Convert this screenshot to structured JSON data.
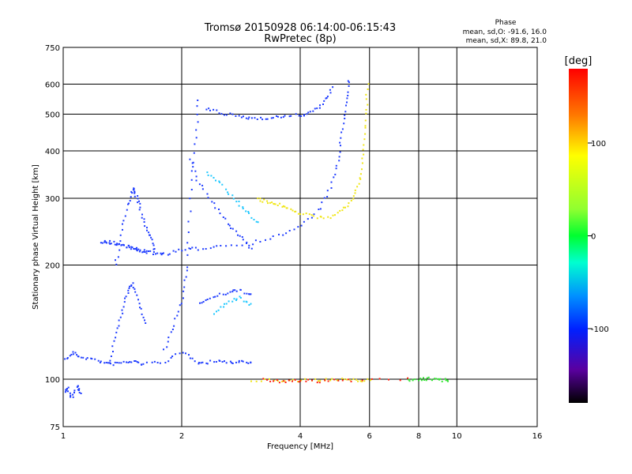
{
  "chart_data": {
    "type": "scatter",
    "title": "Tromsø 20150928 06:14:00-06:15:43",
    "subtitle": "RwPretec (8p)",
    "xlabel": "Frequency [MHz]",
    "ylabel": "Stationary phase Virtual Height [km]",
    "x_scale": "log",
    "y_scale": "log",
    "xlim": [
      1,
      16
    ],
    "ylim": [
      75,
      750
    ],
    "x_ticks": [
      "1",
      "2",
      "4",
      "6",
      "8",
      "10",
      "16"
    ],
    "x_tick_values": [
      1,
      2,
      4,
      6,
      8,
      10,
      16
    ],
    "y_ticks": [
      "75",
      "100",
      "200",
      "300",
      "400",
      "500",
      "600",
      "750"
    ],
    "y_tick_values": [
      75,
      100,
      200,
      300,
      400,
      500,
      600,
      750
    ],
    "grid": true,
    "phase_stats": {
      "heading": "Phase",
      "line1": "mean, sd,O: -91.6, 16.0",
      "line2": "mean, sd,X:  89.8, 21.0"
    },
    "colorbar": {
      "label": "[deg]",
      "ticks": [
        "100",
        "0",
        "-100"
      ],
      "tick_values": [
        100,
        0,
        -100
      ],
      "range": [
        -180,
        180
      ],
      "colormap": "rainbow"
    },
    "series": [
      {
        "color": "#1e3cff",
        "traces": [
          {
            "x": [
              1.0,
              1.05,
              1.1,
              1.2,
              1.3,
              1.4,
              1.5,
              1.6,
              1.8,
              2.0,
              2.2
            ],
            "y": [
              112,
              118,
              115,
              113,
              110,
              111,
              112,
              110,
              112,
              118,
              112
            ]
          },
          {
            "x": [
              1.25,
              1.3,
              1.35,
              1.4,
              1.45,
              1.5,
              1.55,
              1.6,
              1.7,
              1.8,
              2.0,
              2.2,
              2.5,
              3.0,
              3.5,
              4.0,
              4.5,
              4.8,
              5.0,
              5.1,
              5.2,
              5.3
            ],
            "y": [
              232,
              231,
              229,
              227,
              225,
              222,
              220,
              218,
              216,
              215,
              220,
              222,
              226,
              230,
              240,
              255,
              285,
              330,
              390,
              460,
              540,
              620
            ]
          },
          {
            "x": [
              1.35,
              1.4,
              1.45,
              1.5,
              1.52,
              1.55,
              1.6,
              1.65,
              1.7
            ],
            "y": [
              200,
              240,
              290,
              320,
              310,
              290,
              260,
              240,
              220
            ]
          },
          {
            "x": [
              1.3,
              1.35,
              1.4,
              1.45,
              1.5,
              1.55,
              1.6
            ],
            "y": [
              110,
              130,
              150,
              170,
              180,
              160,
              140
            ]
          },
          {
            "x": [
              1.8,
              1.9,
              2.0,
              2.05,
              2.1,
              2.15,
              2.2
            ],
            "y": [
              120,
              140,
              165,
              200,
              300,
              420,
              550
            ]
          },
          {
            "x": [
              2.1,
              2.2,
              2.4,
              2.6,
              2.8,
              3.0
            ],
            "y": [
              380,
              330,
              290,
              260,
              240,
              220
            ]
          },
          {
            "x": [
              2.3,
              2.5,
              2.8,
              3.0,
              3.3,
              3.6,
              4.0,
              4.3,
              4.6,
              4.8
            ],
            "y": [
              520,
              505,
              495,
              490,
              492,
              495,
              500,
              510,
              540,
              590
            ]
          },
          {
            "x": [
              2.2,
              2.4,
              2.6,
              2.8,
              3.0
            ],
            "y": [
              110,
              112,
              111,
              112,
              111
            ]
          },
          {
            "x": [
              2.2,
              2.4,
              2.6,
              2.8,
              3.0
            ],
            "y": [
              160,
              165,
              170,
              172,
              168
            ]
          },
          {
            "x": [
              1.0,
              1.02,
              1.05,
              1.08,
              1.1
            ],
            "y": [
              92,
              95,
              90,
              96,
              93
            ]
          }
        ]
      },
      {
        "color": "#1ec8ff",
        "traces": [
          {
            "x": [
              2.3,
              2.5,
              2.7,
              2.9,
              3.1
            ],
            "y": [
              350,
              330,
              300,
              280,
              260
            ]
          },
          {
            "x": [
              2.4,
              2.6,
              2.8,
              3.0
            ],
            "y": [
              150,
              160,
              165,
              158
            ]
          }
        ]
      },
      {
        "color": "#f0e614",
        "traces": [
          {
            "x": [
              3.1,
              3.3,
              3.5,
              3.7,
              4.0,
              4.4,
              4.8,
              5.2,
              5.5,
              5.7,
              5.8,
              5.85,
              5.9
            ],
            "y": [
              300,
              295,
              290,
              285,
              275,
              268,
              270,
              285,
              310,
              350,
              420,
              500,
              600
            ]
          },
          {
            "x": [
              3.0,
              3.5,
              4.0,
              4.5,
              5.0,
              5.5,
              6.0
            ],
            "y": [
              100,
              100,
              100,
              100,
              100,
              100,
              100
            ]
          }
        ]
      },
      {
        "color": "#ff2010",
        "traces": [
          {
            "x": [
              3.2,
              3.6,
              4.0,
              4.6,
              5.4,
              7.5
            ],
            "y": [
              100,
              99,
              100,
              99,
              100,
              101
            ]
          }
        ]
      },
      {
        "color": "#32e632",
        "traces": [
          {
            "x": [
              7.5,
              8.0,
              8.5,
              9.0,
              9.5
            ],
            "y": [
              100,
              100,
              101,
              100,
              100
            ]
          }
        ]
      }
    ]
  }
}
